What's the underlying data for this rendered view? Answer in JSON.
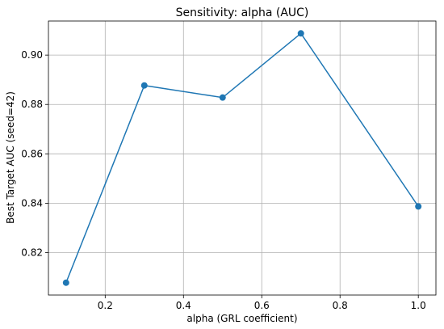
{
  "chart_data": {
    "type": "line",
    "title": "Sensitivity: alpha (AUC)",
    "xlabel": "alpha (GRL coefficient)",
    "ylabel": "Best Target AUC (seed=42)",
    "x": [
      0.1,
      0.3,
      0.5,
      0.7,
      1.0
    ],
    "series": [
      {
        "values": [
          0.8078,
          0.8877,
          0.8828,
          0.9088,
          0.8387
        ],
        "color": "#1f77b4",
        "marker": "circle"
      }
    ],
    "xlim": [
      0.055,
      1.045
    ],
    "ylim": [
      0.8028,
      0.9138
    ],
    "xticks": [
      0.2,
      0.4,
      0.6,
      0.8,
      1.0
    ],
    "xtick_labels": [
      "0.2",
      "0.4",
      "0.6",
      "0.8",
      "1.0"
    ],
    "yticks": [
      0.82,
      0.84,
      0.86,
      0.88,
      0.9
    ],
    "ytick_labels": [
      "0.82",
      "0.84",
      "0.86",
      "0.88",
      "0.90"
    ],
    "grid": true
  }
}
